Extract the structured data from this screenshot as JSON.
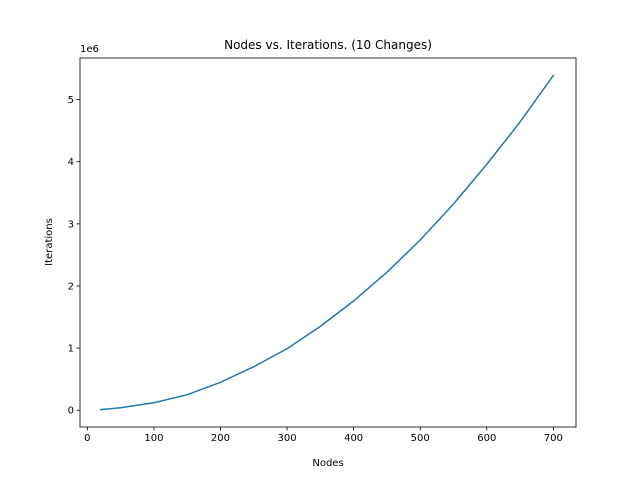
{
  "chart_data": {
    "type": "line",
    "title": "Nodes vs. Iterations. (10 Changes)",
    "xlabel": "Nodes",
    "ylabel": "Iterations",
    "offset_label": "1e6",
    "xlim": [
      -11,
      734
    ],
    "ylim": [
      -0.27,
      5.67
    ],
    "x_ticks": [
      0,
      100,
      200,
      300,
      400,
      500,
      600,
      700
    ],
    "x_tick_labels": [
      "0",
      "100",
      "200",
      "300",
      "400",
      "500",
      "600",
      "700"
    ],
    "y_ticks": [
      0,
      1,
      2,
      3,
      4,
      5
    ],
    "y_tick_labels": [
      "0",
      "1",
      "2",
      "3",
      "4",
      "5"
    ],
    "grid": false,
    "series": [
      {
        "color": "#1f77b4",
        "x": [
          20,
          50,
          100,
          150,
          200,
          250,
          300,
          350,
          400,
          450,
          500,
          550,
          600,
          650,
          700
        ],
        "y": [
          0.01,
          0.04,
          0.12,
          0.25,
          0.45,
          0.7,
          0.99,
          1.35,
          1.76,
          2.22,
          2.74,
          3.32,
          3.96,
          4.64,
          5.39
        ]
      }
    ]
  }
}
